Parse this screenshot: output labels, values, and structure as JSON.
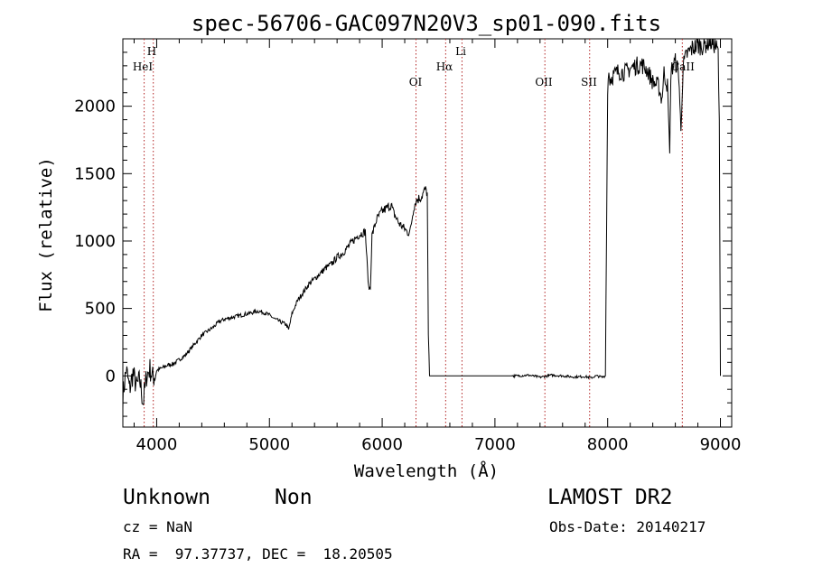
{
  "chart_data": {
    "type": "line",
    "title": "spec-56706-GAC097N20V3_sp01-090.fits",
    "xlabel": "Wavelength (Å)",
    "ylabel": "Flux (relative)",
    "xlim": [
      3700,
      9100
    ],
    "ylim": [
      -380,
      2500
    ],
    "x_ticks": [
      4000,
      5000,
      6000,
      7000,
      8000,
      9000
    ],
    "y_ticks": [
      0,
      500,
      1000,
      1500,
      2000
    ],
    "grid": false,
    "series": [
      {
        "x": [
          3700,
          3730,
          3760,
          3790,
          3820,
          3850,
          3880,
          3910,
          3940,
          3970,
          4000,
          4050,
          4100,
          4150,
          4200,
          4250,
          4300,
          4350,
          4400,
          4450,
          4500,
          4550,
          4600,
          4650,
          4700,
          4750,
          4800,
          4850,
          4900,
          4950,
          5000,
          5050,
          5100,
          5150,
          5170,
          5200,
          5250,
          5300,
          5350,
          5400,
          5450,
          5500,
          5550,
          5600,
          5650,
          5700,
          5750,
          5800,
          5850,
          5880,
          5895,
          5910,
          5950,
          6000,
          6050,
          6080,
          6100,
          6150,
          6200,
          6230,
          6250,
          6280,
          6300,
          6350,
          6380,
          6400,
          6410,
          6420,
          6500,
          7000,
          7200,
          7300,
          7400,
          7500,
          7600,
          7700,
          7800,
          7850,
          7900,
          7950,
          7980,
          8000,
          8010,
          8020,
          8050,
          8100,
          8150,
          8200,
          8250,
          8300,
          8350,
          8400,
          8450,
          8480,
          8500,
          8530,
          8550,
          8560,
          8580,
          8600,
          8630,
          8650,
          8660,
          8670,
          8700,
          8750,
          8800,
          8850,
          8900,
          8950,
          8980,
          8990,
          9000
        ],
        "y": [
          -150,
          50,
          -100,
          20,
          -80,
          -30,
          -200,
          0,
          50,
          -20,
          40,
          60,
          80,
          90,
          120,
          150,
          200,
          250,
          300,
          330,
          360,
          400,
          420,
          430,
          440,
          450,
          460,
          470,
          480,
          470,
          450,
          420,
          400,
          380,
          340,
          460,
          560,
          620,
          680,
          720,
          760,
          800,
          830,
          880,
          910,
          960,
          1010,
          1050,
          1070,
          650,
          650,
          1040,
          1160,
          1220,
          1250,
          1270,
          1210,
          1130,
          1090,
          1060,
          1080,
          1250,
          1300,
          1330,
          1380,
          1360,
          300,
          0,
          0,
          0,
          0,
          5,
          -10,
          5,
          0,
          -8,
          -5,
          -15,
          0,
          -10,
          0,
          2150,
          2250,
          2200,
          2230,
          2260,
          2250,
          2280,
          2300,
          2310,
          2270,
          2180,
          2150,
          2050,
          2250,
          2150,
          1650,
          2250,
          2300,
          2330,
          2250,
          1800,
          2100,
          2300,
          2380,
          2430,
          2450,
          2450,
          2480,
          2460,
          2400,
          1900,
          0
        ]
      }
    ],
    "line_markers": [
      {
        "label": "HeI",
        "x": 3889
      },
      {
        "label": "H",
        "x": 3970
      },
      {
        "label": "OI",
        "x": 6300
      },
      {
        "label": "Hα",
        "x": 6563
      },
      {
        "label": "Li",
        "x": 6708
      },
      {
        "label": "OII",
        "x": 7443
      },
      {
        "label": "SII",
        "x": 7840
      },
      {
        "label": "CaII",
        "x": 8662
      }
    ]
  },
  "info": {
    "class": "Unknown",
    "subclass": "Non",
    "survey": "LAMOST DR2",
    "cz": "cz = NaN",
    "obs_date": "Obs-Date: 20140217",
    "coords": "RA =  97.37737, DEC =  18.20505"
  }
}
